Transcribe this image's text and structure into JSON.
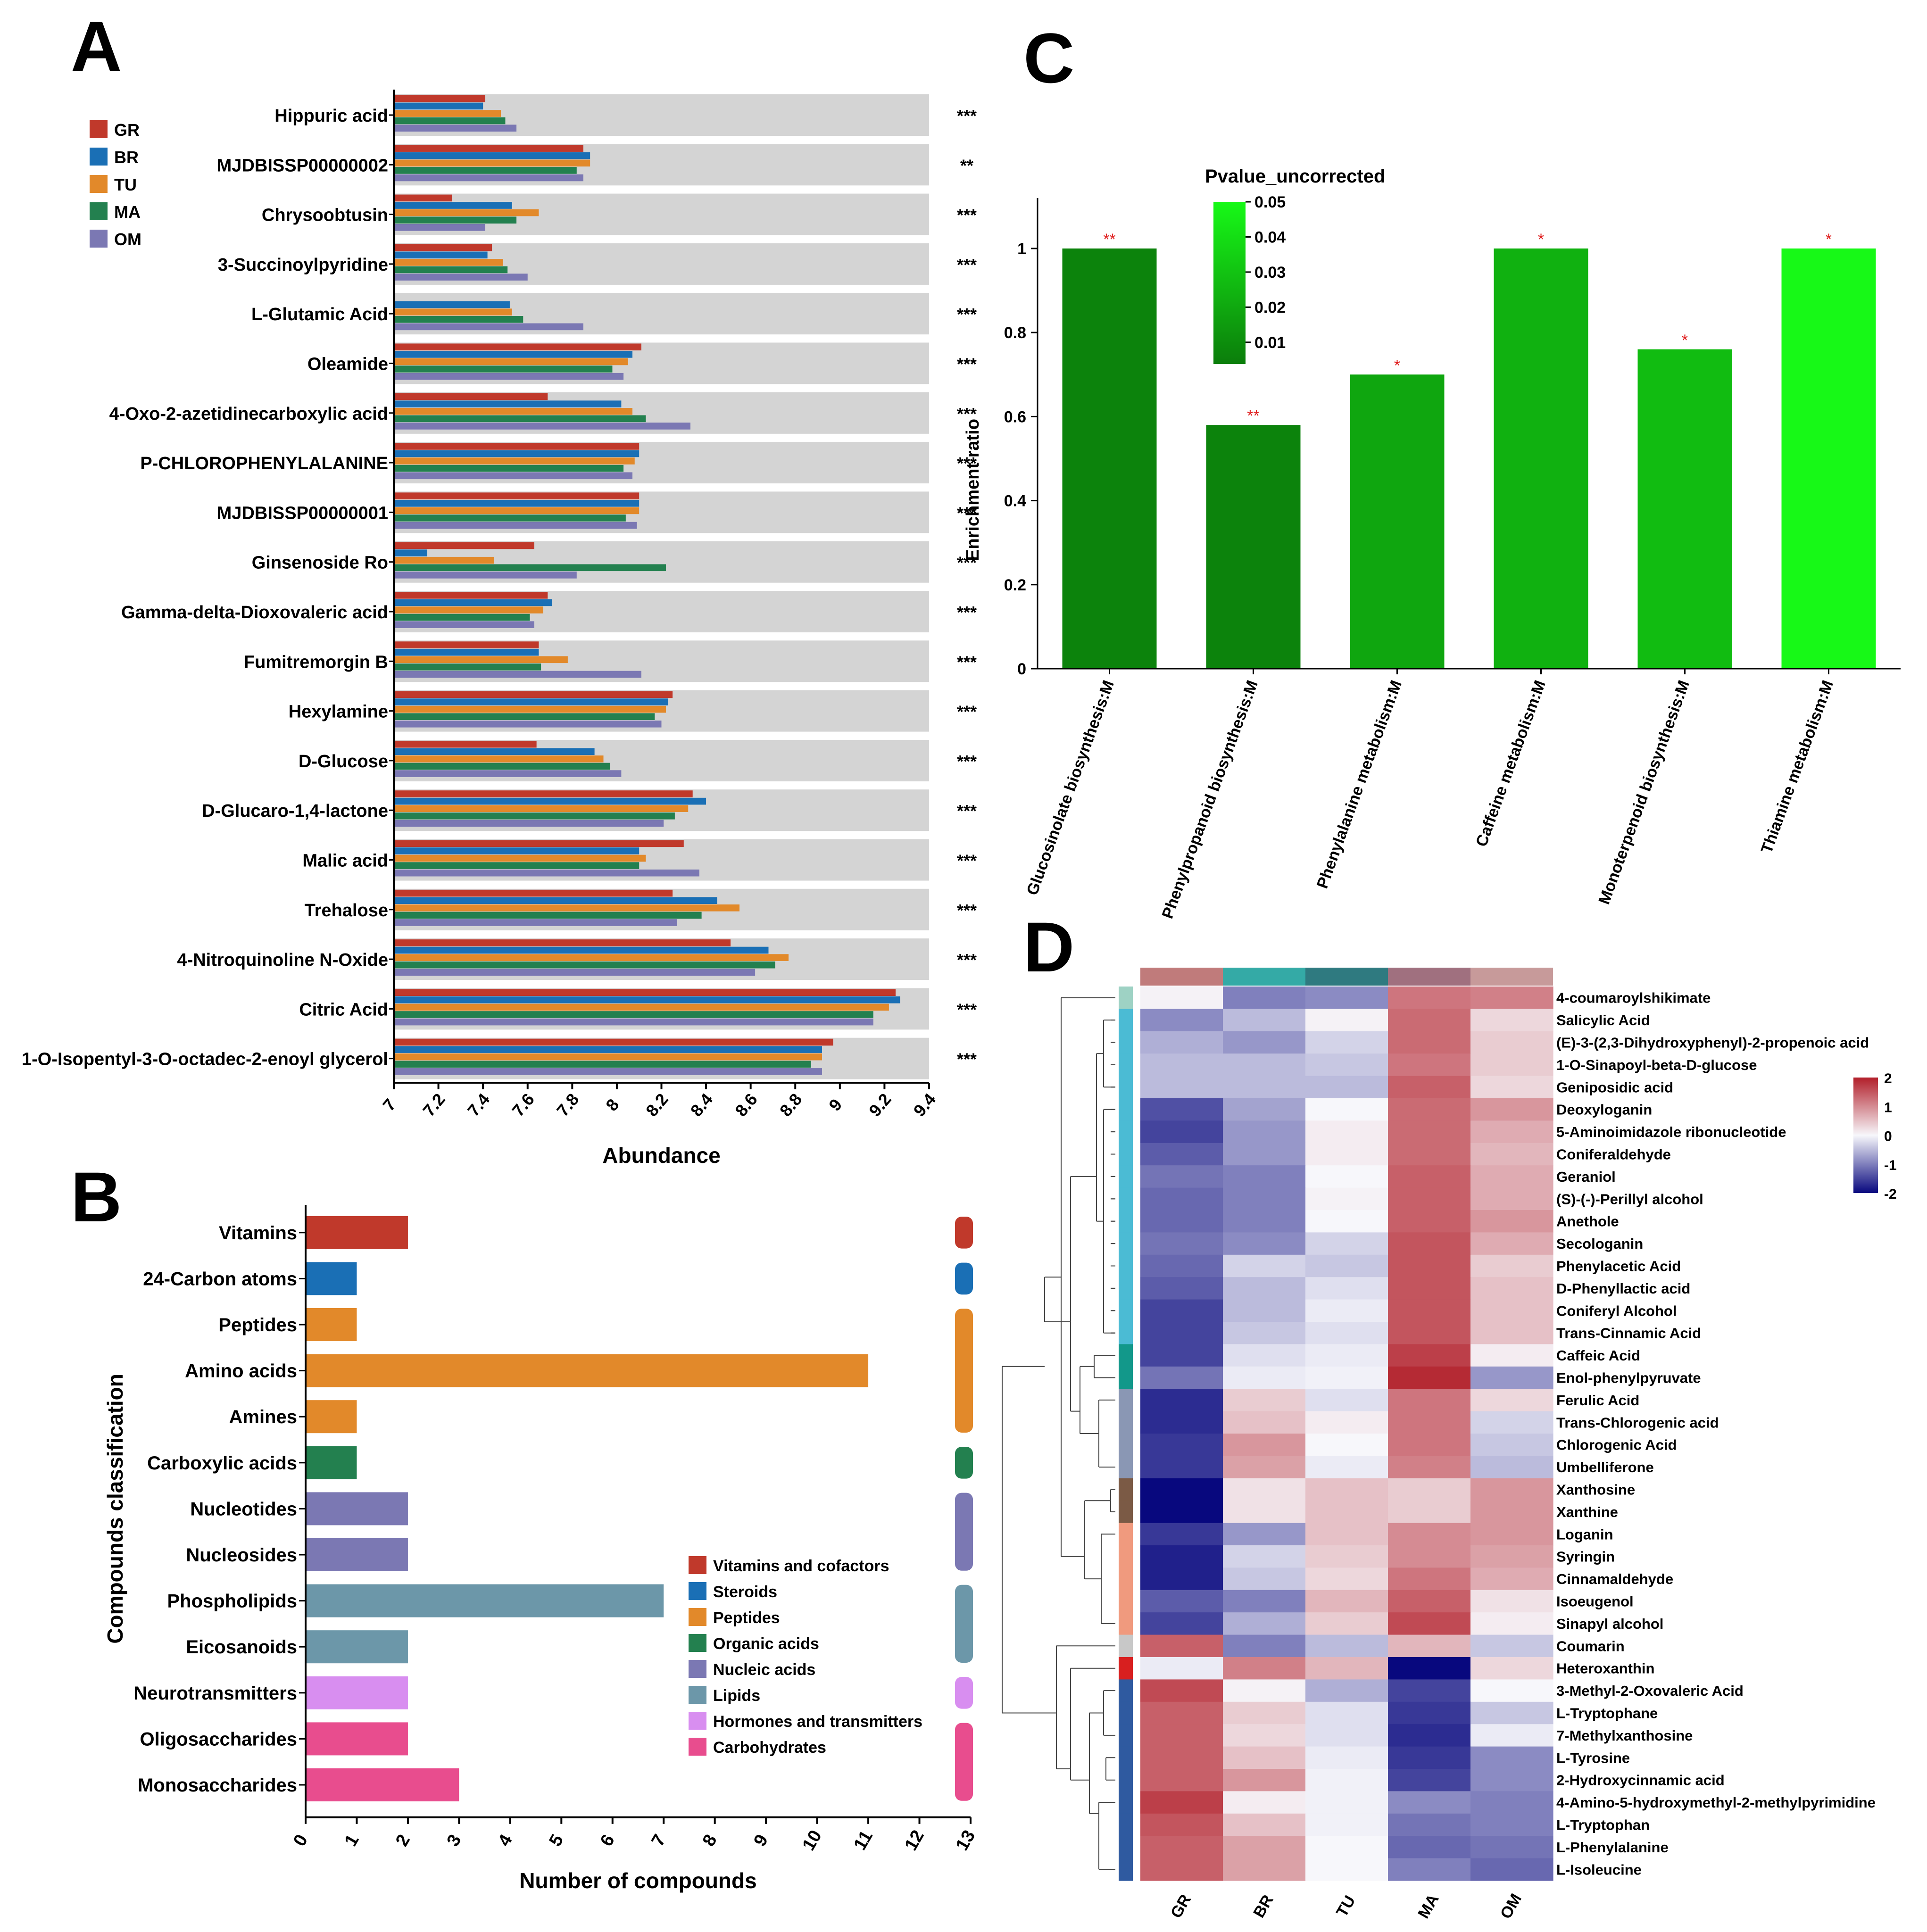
{
  "chart_data": [
    {
      "panel": "A",
      "type": "bar",
      "orientation": "horizontal",
      "xlabel": "Abundance",
      "xlim": [
        7,
        9.4
      ],
      "xticks": [
        "7",
        "7.2",
        "7.4",
        "7.6",
        "7.8",
        "8",
        "8.2",
        "8.4",
        "8.6",
        "8.8",
        "9",
        "9.2",
        "9.4"
      ],
      "groups": [
        "GR",
        "BR",
        "TU",
        "MA",
        "OM"
      ],
      "colors": [
        "#c0392b",
        "#1a6fb5",
        "#e2892a",
        "#23804f",
        "#7b78b3"
      ],
      "background_band_color": "#d4d4d4",
      "categories": [
        {
          "name": "Hippuric acid",
          "sig": "***",
          "values": [
            7.41,
            7.4,
            7.48,
            7.5,
            7.55
          ]
        },
        {
          "name": "MJDBISSP00000002",
          "sig": "**",
          "values": [
            7.85,
            7.88,
            7.88,
            7.82,
            7.85
          ]
        },
        {
          "name": "Chrysoobtusin",
          "sig": "***",
          "values": [
            7.26,
            7.53,
            7.65,
            7.55,
            7.41
          ]
        },
        {
          "name": "3-Succinoylpyridine",
          "sig": "***",
          "values": [
            7.44,
            7.42,
            7.49,
            7.51,
            7.6
          ]
        },
        {
          "name": "L-Glutamic Acid",
          "sig": "***",
          "values": [
            7.0,
            7.52,
            7.53,
            7.58,
            7.85
          ]
        },
        {
          "name": "Oleamide",
          "sig": "***",
          "values": [
            8.11,
            8.07,
            8.05,
            7.98,
            8.03
          ]
        },
        {
          "name": "4-Oxo-2-azetidinecarboxylic acid",
          "sig": "***",
          "values": [
            7.69,
            8.02,
            8.07,
            8.13,
            8.33
          ]
        },
        {
          "name": "P-CHLOROPHENYLALANINE",
          "sig": "***",
          "values": [
            8.1,
            8.1,
            8.08,
            8.03,
            8.07
          ]
        },
        {
          "name": "MJDBISSP00000001",
          "sig": "***",
          "values": [
            8.1,
            8.1,
            8.1,
            8.04,
            8.09
          ]
        },
        {
          "name": "Ginsenoside Ro",
          "sig": "***",
          "values": [
            7.63,
            7.15,
            7.45,
            8.22,
            7.82
          ]
        },
        {
          "name": "Gamma-delta-Dioxovaleric acid",
          "sig": "***",
          "values": [
            7.69,
            7.71,
            7.67,
            7.61,
            7.63
          ]
        },
        {
          "name": "Fumitremorgin B",
          "sig": "***",
          "values": [
            7.65,
            7.65,
            7.78,
            7.66,
            8.11
          ]
        },
        {
          "name": "Hexylamine",
          "sig": "***",
          "values": [
            8.25,
            8.23,
            8.22,
            8.17,
            8.2
          ]
        },
        {
          "name": "D-Glucose",
          "sig": "***",
          "values": [
            7.64,
            7.9,
            7.94,
            7.97,
            8.02
          ]
        },
        {
          "name": "D-Glucaro-1,4-lactone",
          "sig": "***",
          "values": [
            8.34,
            8.4,
            8.32,
            8.26,
            8.21
          ]
        },
        {
          "name": "Malic acid",
          "sig": "***",
          "values": [
            8.3,
            8.1,
            8.13,
            8.1,
            8.37
          ]
        },
        {
          "name": "Trehalose",
          "sig": "***",
          "values": [
            8.25,
            8.45,
            8.55,
            8.38,
            8.27
          ]
        },
        {
          "name": "4-Nitroquinoline N-Oxide",
          "sig": "***",
          "values": [
            8.51,
            8.68,
            8.77,
            8.71,
            8.62
          ]
        },
        {
          "name": "Citric Acid",
          "sig": "***",
          "values": [
            9.25,
            9.27,
            9.22,
            9.15,
            9.15
          ]
        },
        {
          "name": "1-O-Isopentyl-3-O-octadec-2-enoyl glycerol",
          "sig": "***",
          "values": [
            8.97,
            8.92,
            8.92,
            8.87,
            8.92
          ]
        }
      ]
    },
    {
      "panel": "B",
      "type": "bar",
      "orientation": "horizontal",
      "xlabel": "Number of compounds",
      "ylabel": "Compounds classification",
      "xlim": [
        0,
        13
      ],
      "xticks": [
        "0",
        "1",
        "2",
        "3",
        "4",
        "5",
        "6",
        "7",
        "8",
        "9",
        "10",
        "11",
        "12",
        "13"
      ],
      "categories": [
        "Vitamins",
        "24-Carbon atoms",
        "Peptides",
        "Amino acids",
        "Amines",
        "Carboxylic acids",
        "Nucleotides",
        "Nucleosides",
        "Phospholipids",
        "Eicosanoids",
        "Neurotransmitters",
        "Oligosaccharides",
        "Monosaccharides"
      ],
      "values": [
        2,
        1,
        1,
        11,
        1,
        1,
        2,
        2,
        7,
        2,
        2,
        2,
        3
      ],
      "bar_groups": [
        0,
        1,
        2,
        2,
        2,
        3,
        4,
        4,
        5,
        5,
        6,
        7,
        7
      ],
      "legend": [
        {
          "label": "Vitamins and cofactors",
          "color": "#c0392b"
        },
        {
          "label": "Steroids",
          "color": "#1a6fb5"
        },
        {
          "label": "Peptides",
          "color": "#e2892a"
        },
        {
          "label": "Organic acids",
          "color": "#23804f"
        },
        {
          "label": "Nucleic acids",
          "color": "#7b78b3"
        },
        {
          "label": "Lipids",
          "color": "#6c97a9"
        },
        {
          "label": "Hormones and transmitters",
          "color": "#d88ef0"
        },
        {
          "label": "Carbohydrates",
          "color": "#e84d8e"
        }
      ],
      "group_spans": [
        [
          0,
          0
        ],
        [
          1,
          1
        ],
        [
          2,
          4
        ],
        [
          5,
          5
        ],
        [
          6,
          7
        ],
        [
          8,
          9
        ],
        [
          10,
          10
        ],
        [
          11,
          12
        ]
      ]
    },
    {
      "panel": "C",
      "type": "bar",
      "ylabel": "Enrichment ratio",
      "ylim": [
        0,
        1.12
      ],
      "yticks": [
        "0",
        "0.2",
        "0.4",
        "0.6",
        "0.8",
        "1"
      ],
      "categories": [
        "Glucosinolate biosynthesis:M",
        "Phenylpropanoid biosynthesis:M",
        "Phenylalanine metabolism:M",
        "Caffeine metabolism:M",
        "Monoterpenoid biosynthesis:M",
        "Thiamine metabolism:M"
      ],
      "values": [
        1.0,
        0.58,
        0.7,
        1.0,
        0.76,
        1.0
      ],
      "pvalues": [
        0.007,
        0.007,
        0.02,
        0.024,
        0.028,
        0.05
      ],
      "sig": [
        "**",
        "**",
        "*",
        "*",
        "*",
        "*"
      ],
      "colorbar_title": "Pvalue_uncorrected",
      "colorbar_ticks": [
        "0.05",
        "0.04",
        "0.03",
        "0.02",
        "0.01"
      ],
      "colorbar_range": [
        0.005,
        0.05
      ],
      "color_low": "#0b7d0b",
      "color_high": "#17f917"
    },
    {
      "panel": "D",
      "type": "heatmap",
      "columns": [
        "GR",
        "BR",
        "TU",
        "MA",
        "OM"
      ],
      "column_colors": [
        "#c07b7b",
        "#34aaa6",
        "#2f7a80",
        "#a0707f",
        "#c79a9a"
      ],
      "colorbar_ticks": [
        "2",
        "1",
        "0",
        "-1",
        "-2"
      ],
      "vmin": -2,
      "vmax": 2,
      "rows": [
        {
          "name": "4-coumaroylshikimate",
          "values": [
            0.05,
            -1.0,
            -0.9,
            1.2,
            1.1
          ],
          "cluster": 0
        },
        {
          "name": "Salicylic Acid",
          "values": [
            -0.9,
            -0.5,
            0.05,
            1.3,
            0.3
          ],
          "cluster": 1
        },
        {
          "name": "(E)-3-(2,3-Dihydroxyphenyl)-2-propenoic acid",
          "values": [
            -0.6,
            -0.8,
            -0.3,
            1.3,
            0.4
          ],
          "cluster": 1
        },
        {
          "name": "1-O-Sinapoyl-beta-D-glucose",
          "values": [
            -0.5,
            -0.5,
            -0.4,
            1.2,
            0.4
          ],
          "cluster": 1
        },
        {
          "name": "Geniposidic acid",
          "values": [
            -0.5,
            -0.5,
            -0.5,
            1.4,
            0.3
          ],
          "cluster": 1
        },
        {
          "name": "Deoxyloganin",
          "values": [
            -1.4,
            -0.7,
            0.0,
            1.3,
            0.9
          ],
          "cluster": 1
        },
        {
          "name": "5-Aminoimidazole ribonucleotide",
          "values": [
            -1.5,
            -0.8,
            0.1,
            1.3,
            0.7
          ],
          "cluster": 1
        },
        {
          "name": "Coniferaldehyde",
          "values": [
            -1.3,
            -0.8,
            0.1,
            1.3,
            0.6
          ],
          "cluster": 1
        },
        {
          "name": "Geraniol",
          "values": [
            -1.1,
            -1.0,
            0.0,
            1.4,
            0.7
          ],
          "cluster": 1
        },
        {
          "name": "(S)-(-)-Perillyl alcohol",
          "values": [
            -1.2,
            -1.0,
            0.05,
            1.4,
            0.7
          ],
          "cluster": 1
        },
        {
          "name": "Anethole",
          "values": [
            -1.2,
            -1.0,
            0.0,
            1.4,
            0.9
          ],
          "cluster": 1
        },
        {
          "name": "Secologanin",
          "values": [
            -1.1,
            -0.9,
            -0.3,
            1.5,
            0.7
          ],
          "cluster": 1
        },
        {
          "name": "Phenylacetic Acid",
          "values": [
            -1.2,
            -0.3,
            -0.4,
            1.5,
            0.4
          ],
          "cluster": 1
        },
        {
          "name": "D-Phenyllactic acid",
          "values": [
            -1.3,
            -0.5,
            -0.2,
            1.5,
            0.5
          ],
          "cluster": 1
        },
        {
          "name": "Coniferyl Alcohol",
          "values": [
            -1.5,
            -0.5,
            -0.1,
            1.5,
            0.5
          ],
          "cluster": 1
        },
        {
          "name": "Trans-Cinnamic Acid",
          "values": [
            -1.5,
            -0.4,
            -0.2,
            1.5,
            0.5
          ],
          "cluster": 1
        },
        {
          "name": "Caffeic Acid",
          "values": [
            -1.5,
            -0.2,
            -0.1,
            1.7,
            0.1
          ],
          "cluster": 2
        },
        {
          "name": "Enol-phenylpyruvate",
          "values": [
            -1.1,
            -0.1,
            -0.05,
            1.9,
            -0.8
          ],
          "cluster": 2
        },
        {
          "name": "Ferulic Acid",
          "values": [
            -1.7,
            0.4,
            -0.2,
            1.2,
            0.3
          ],
          "cluster": 3
        },
        {
          "name": "Trans-Chlorogenic acid",
          "values": [
            -1.7,
            0.5,
            0.1,
            1.2,
            -0.3
          ],
          "cluster": 3
        },
        {
          "name": "Chlorogenic Acid",
          "values": [
            -1.6,
            0.9,
            0.0,
            1.2,
            -0.4
          ],
          "cluster": 3
        },
        {
          "name": "Umbelliferone",
          "values": [
            -1.6,
            0.8,
            -0.1,
            1.1,
            -0.5
          ],
          "cluster": 3
        },
        {
          "name": "Xanthosine",
          "values": [
            -2.0,
            0.2,
            0.5,
            0.4,
            0.9
          ],
          "cluster": 4
        },
        {
          "name": "Xanthine",
          "values": [
            -2.0,
            0.2,
            0.5,
            0.4,
            0.9
          ],
          "cluster": 4
        },
        {
          "name": "Loganin",
          "values": [
            -1.6,
            -0.8,
            0.5,
            1.0,
            0.9
          ],
          "cluster": 5
        },
        {
          "name": "Syringin",
          "values": [
            -1.8,
            -0.3,
            0.4,
            1.0,
            0.8
          ],
          "cluster": 5
        },
        {
          "name": "Cinnamaldehyde",
          "values": [
            -1.8,
            -0.4,
            0.3,
            1.2,
            0.7
          ],
          "cluster": 5
        },
        {
          "name": "Isoeugenol",
          "values": [
            -1.3,
            -1.0,
            0.6,
            1.4,
            0.2
          ],
          "cluster": 5
        },
        {
          "name": "Sinapyl alcohol",
          "values": [
            -1.5,
            -0.6,
            0.4,
            1.6,
            0.1
          ],
          "cluster": 5
        },
        {
          "name": "Coumarin",
          "values": [
            1.4,
            -1.0,
            -0.5,
            0.6,
            -0.4
          ],
          "cluster": 6
        },
        {
          "name": "Heteroxanthin",
          "values": [
            -0.1,
            1.1,
            0.6,
            -2.0,
            0.3
          ],
          "cluster": 7
        },
        {
          "name": "3-Methyl-2-Oxovaleric Acid",
          "values": [
            1.6,
            0.05,
            -0.6,
            -1.5,
            0.0
          ],
          "cluster": 8
        },
        {
          "name": "L-Tryptophane",
          "values": [
            1.4,
            0.4,
            -0.2,
            -1.6,
            -0.4
          ],
          "cluster": 8
        },
        {
          "name": "7-Methylxanthosine",
          "values": [
            1.4,
            0.3,
            -0.2,
            -1.7,
            -0.1
          ],
          "cluster": 8
        },
        {
          "name": "L-Tyrosine",
          "values": [
            1.4,
            0.5,
            -0.1,
            -1.6,
            -0.9
          ],
          "cluster": 8
        },
        {
          "name": "2-Hydroxycinnamic acid",
          "values": [
            1.4,
            0.9,
            -0.05,
            -1.5,
            -0.9
          ],
          "cluster": 8
        },
        {
          "name": "4-Amino-5-hydroxymethyl-2-methylpyrimidine",
          "values": [
            1.7,
            0.1,
            -0.05,
            -0.9,
            -1.0
          ],
          "cluster": 8
        },
        {
          "name": "L-Tryptophan",
          "values": [
            1.5,
            0.5,
            -0.05,
            -1.1,
            -1.0
          ],
          "cluster": 8
        },
        {
          "name": "L-Phenylalanine",
          "values": [
            1.4,
            0.8,
            0.0,
            -1.2,
            -1.1
          ],
          "cluster": 8
        },
        {
          "name": "L-Isoleucine",
          "values": [
            1.4,
            0.8,
            0.0,
            -1.0,
            -1.2
          ],
          "cluster": 8
        }
      ],
      "cluster_colors": [
        "#9ed2c4",
        "#4bbbd4",
        "#12988a",
        "#8a97b4",
        "#7b5a45",
        "#f09a7e",
        "#c8c8c8",
        "#d81f1f",
        "#2f5aa0",
        "#e84a33"
      ]
    }
  ],
  "panel_labels": {
    "a": "A",
    "b": "B",
    "c": "C",
    "d": "D"
  }
}
